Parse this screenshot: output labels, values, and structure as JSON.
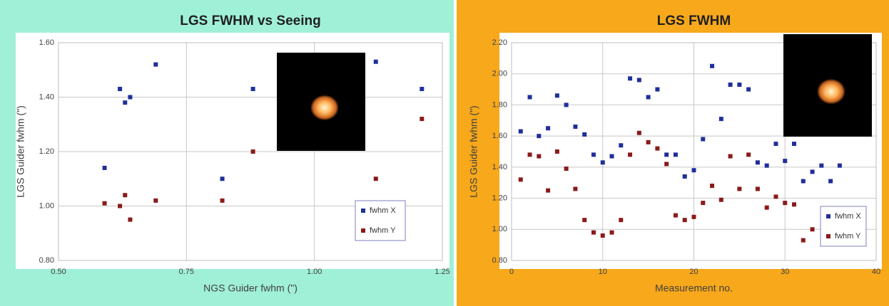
{
  "chart_data": [
    {
      "type": "scatter",
      "title": "LGS FWHM vs Seeing",
      "x_label": "NGS Guider fwhm (\")",
      "y_label": "LGS Guider fwhm (\")",
      "background": "#a0f0d8",
      "grid": true,
      "legend": "lower right",
      "xlim": [
        0.5,
        1.25
      ],
      "xticks": [
        {
          "value": 0.5,
          "label": "0.50"
        },
        {
          "value": 0.75,
          "label": "0.75"
        },
        {
          "value": 1,
          "label": "1.00"
        },
        {
          "value": 1.25,
          "label": "1.25"
        }
      ],
      "ylim": [
        0.8,
        1.6
      ],
      "yticks": [
        {
          "value": 0.8,
          "label": "0.80"
        },
        {
          "value": 1,
          "label": "1.00"
        },
        {
          "value": 1.2,
          "label": "1.20"
        },
        {
          "value": 1.4,
          "label": "1.40"
        },
        {
          "value": 1.6,
          "label": "1.60"
        }
      ],
      "series": [
        {
          "name": "fwhm X",
          "color": "#1f2f9a",
          "x": [
            0.59,
            0.62,
            0.63,
            0.64,
            0.69,
            0.82,
            0.88,
            1.12,
            1.21
          ],
          "values": [
            1.14,
            1.43,
            1.38,
            1.4,
            1.52,
            1.1,
            1.43,
            1.53,
            1.43
          ]
        },
        {
          "name": "fwhm Y",
          "color": "#8b1a1a",
          "x": [
            0.59,
            0.62,
            0.63,
            0.64,
            0.69,
            0.82,
            0.88,
            1.12,
            1.21
          ],
          "values": [
            1.01,
            1.0,
            1.04,
            0.95,
            1.02,
            1.02,
            1.2,
            1.1,
            1.32
          ]
        }
      ]
    },
    {
      "type": "scatter",
      "title": "LGS FWHM",
      "x_label": "Measurement no.",
      "y_label": "LGS Guider fwhm (\")",
      "background": "#f7a81b",
      "grid": true,
      "legend": "lower right",
      "xlim": [
        0,
        40
      ],
      "xticks": [
        0,
        10,
        20,
        30,
        40
      ],
      "ylim": [
        0.8,
        2.2
      ],
      "yticks": [
        {
          "value": 0.8,
          "label": "0.80"
        },
        {
          "value": 1,
          "label": "1.00"
        },
        {
          "value": 1.2,
          "label": "1.20"
        },
        {
          "value": 1.4,
          "label": "1.40"
        },
        {
          "value": 1.6,
          "label": "1.60"
        },
        {
          "value": 1.8,
          "label": "1.80"
        },
        {
          "value": 2,
          "label": "2.00"
        },
        {
          "value": 2.2,
          "label": "2.20"
        }
      ],
      "series": [
        {
          "name": "fwhm X",
          "color": "#1f2f9a",
          "x": [
            1,
            2,
            3,
            4,
            5,
            6,
            7,
            8,
            9,
            10,
            11,
            12,
            13,
            14,
            15,
            16,
            17,
            18,
            19,
            20,
            21,
            22,
            23,
            24,
            25,
            26,
            27,
            28,
            29,
            30,
            31,
            32,
            33,
            34,
            35,
            36
          ],
          "values": [
            1.63,
            1.85,
            1.6,
            1.65,
            1.86,
            1.8,
            1.66,
            1.61,
            1.48,
            1.43,
            1.47,
            1.54,
            1.97,
            1.96,
            1.85,
            1.9,
            1.48,
            1.48,
            1.34,
            1.38,
            1.58,
            2.05,
            1.71,
            1.93,
            1.93,
            1.9,
            1.43,
            1.41,
            1.55,
            1.44,
            1.55,
            1.31,
            1.37,
            1.41,
            1.31,
            1.41
          ]
        },
        {
          "name": "fwhm Y",
          "color": "#8b1a1a",
          "x": [
            1,
            2,
            3,
            4,
            5,
            6,
            7,
            8,
            9,
            10,
            11,
            12,
            13,
            14,
            15,
            16,
            17,
            18,
            19,
            20,
            21,
            22,
            23,
            24,
            25,
            26,
            27,
            28,
            29,
            30,
            31,
            32,
            33
          ],
          "values": [
            1.32,
            1.48,
            1.47,
            1.25,
            1.5,
            1.39,
            1.26,
            1.06,
            0.98,
            0.96,
            0.98,
            1.06,
            1.48,
            1.62,
            1.56,
            1.52,
            1.42,
            1.09,
            1.06,
            1.08,
            1.17,
            1.28,
            1.19,
            1.47,
            1.26,
            1.48,
            1.26,
            1.14,
            1.21,
            1.17,
            1.16,
            0.93,
            1.0
          ]
        }
      ]
    }
  ]
}
